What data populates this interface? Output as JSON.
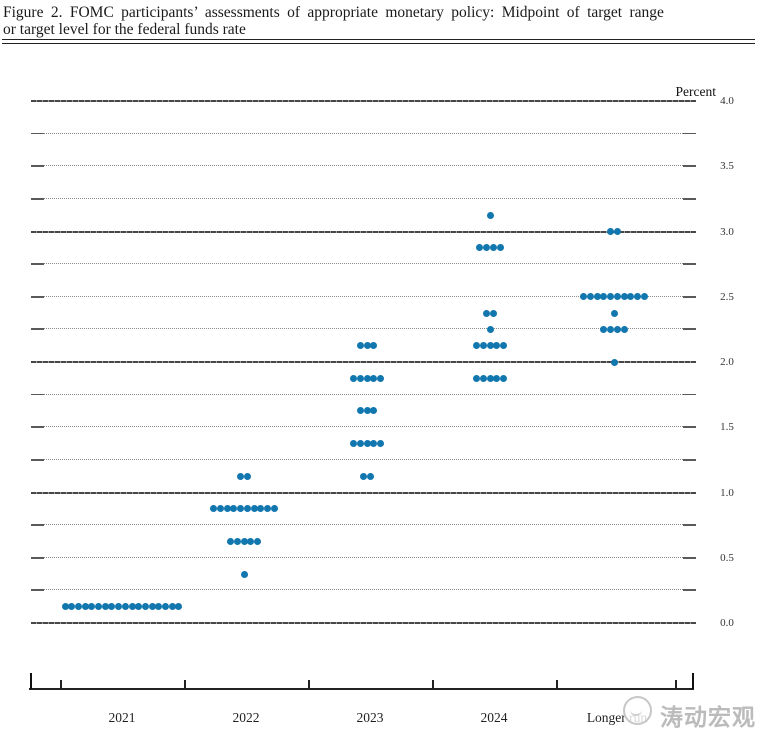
{
  "figure": {
    "title_line1": "Figure 2.  FOMC participants’ assessments of appropriate monetary policy:  Midpoint of target range",
    "title_line2": "or target level for the federal funds rate"
  },
  "chart_data": {
    "type": "scatter",
    "title": "FOMC participants' assessments of appropriate monetary policy: Midpoint of target range or target level for the federal funds rate",
    "ylabel": "Percent",
    "ylim": [
      0.0,
      4.0
    ],
    "gridline_step": 0.25,
    "y_label_step": 0.5,
    "y_tick_labels": [
      "4.0",
      "3.5",
      "3.0",
      "2.5",
      "2.0",
      "1.5",
      "1.0",
      "0.5",
      "0.0"
    ],
    "grid": "on",
    "legend_position": "none",
    "categories": [
      "2021",
      "2022",
      "2023",
      "2024",
      "Longer run"
    ],
    "dots": [
      {
        "category": "2021",
        "rate": 0.125,
        "count": 18
      },
      {
        "category": "2022",
        "rate": 0.375,
        "count": 1
      },
      {
        "category": "2022",
        "rate": 0.625,
        "count": 5
      },
      {
        "category": "2022",
        "rate": 0.875,
        "count": 10
      },
      {
        "category": "2022",
        "rate": 1.125,
        "count": 2
      },
      {
        "category": "2023",
        "rate": 1.125,
        "count": 2
      },
      {
        "category": "2023",
        "rate": 1.375,
        "count": 5
      },
      {
        "category": "2023",
        "rate": 1.625,
        "count": 3
      },
      {
        "category": "2023",
        "rate": 1.875,
        "count": 5
      },
      {
        "category": "2023",
        "rate": 2.125,
        "count": 3
      },
      {
        "category": "2024",
        "rate": 1.875,
        "count": 5
      },
      {
        "category": "2024",
        "rate": 2.125,
        "count": 5
      },
      {
        "category": "2024",
        "rate": 2.25,
        "count": 1
      },
      {
        "category": "2024",
        "rate": 2.375,
        "count": 2
      },
      {
        "category": "2024",
        "rate": 2.875,
        "count": 4
      },
      {
        "category": "2024",
        "rate": 3.125,
        "count": 1
      },
      {
        "category": "Longer run",
        "rate": 2.0,
        "count": 1
      },
      {
        "category": "Longer run",
        "rate": 2.25,
        "count": 4
      },
      {
        "category": "Longer run",
        "rate": 2.375,
        "count": 1
      },
      {
        "category": "Longer run",
        "rate": 2.5,
        "count": 10
      },
      {
        "category": "Longer run",
        "rate": 3.0,
        "count": 2
      }
    ],
    "dot_color": "#1177ae"
  },
  "watermark": {
    "text": "涛动宏观",
    "logo": "smiley-circle-logo"
  }
}
